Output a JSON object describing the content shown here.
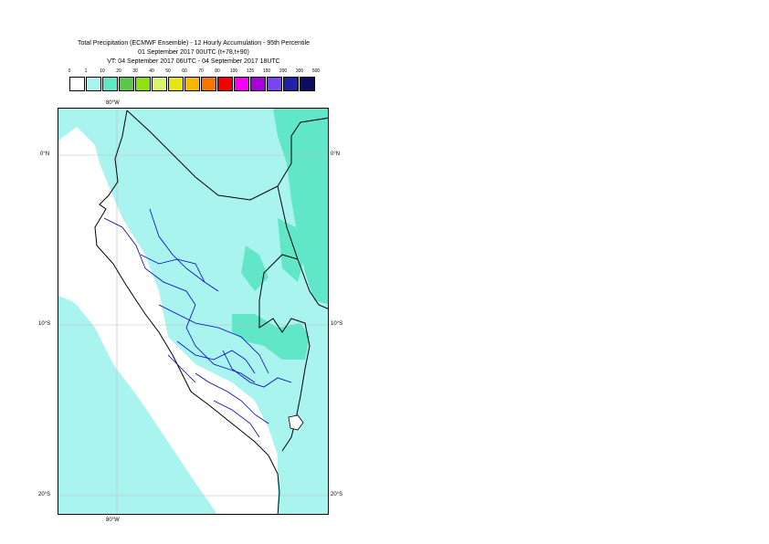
{
  "header": {
    "line1": "Total Precipitation (ECMWF Ensemble) - 12 Hourly Accumulation - 95th Percentile",
    "line2": "01 September 2017 00UTC (t+78,t+90)",
    "line3": "VT: 04 September 2017 06UTC - 04 September 2017 18UTC"
  },
  "legend": {
    "thresholds": [
      "0",
      "1",
      "10",
      "20",
      "30",
      "40",
      "50",
      "60",
      "70",
      "80",
      "100",
      "125",
      "150",
      "200",
      "300",
      "500"
    ],
    "colors": [
      "#ffffff",
      "#aaf4f0",
      "#62e6c8",
      "#5cc84a",
      "#8ee010",
      "#d8f46c",
      "#e6e616",
      "#f4b800",
      "#f47800",
      "#f40000",
      "#f400f4",
      "#aa00d8",
      "#7844f4",
      "#2222a6",
      "#0c0c60"
    ]
  },
  "map": {
    "lat_labels": {
      "eq": "0°N",
      "s10": "10°S",
      "s20": "20°S"
    },
    "lon_label": "80°W",
    "colors": {
      "ocean": "#ffffff",
      "light_precip": "#aaf4f0",
      "moderate_precip": "#62e6c8",
      "coast": "#000000",
      "regions": "#0000c8"
    }
  }
}
